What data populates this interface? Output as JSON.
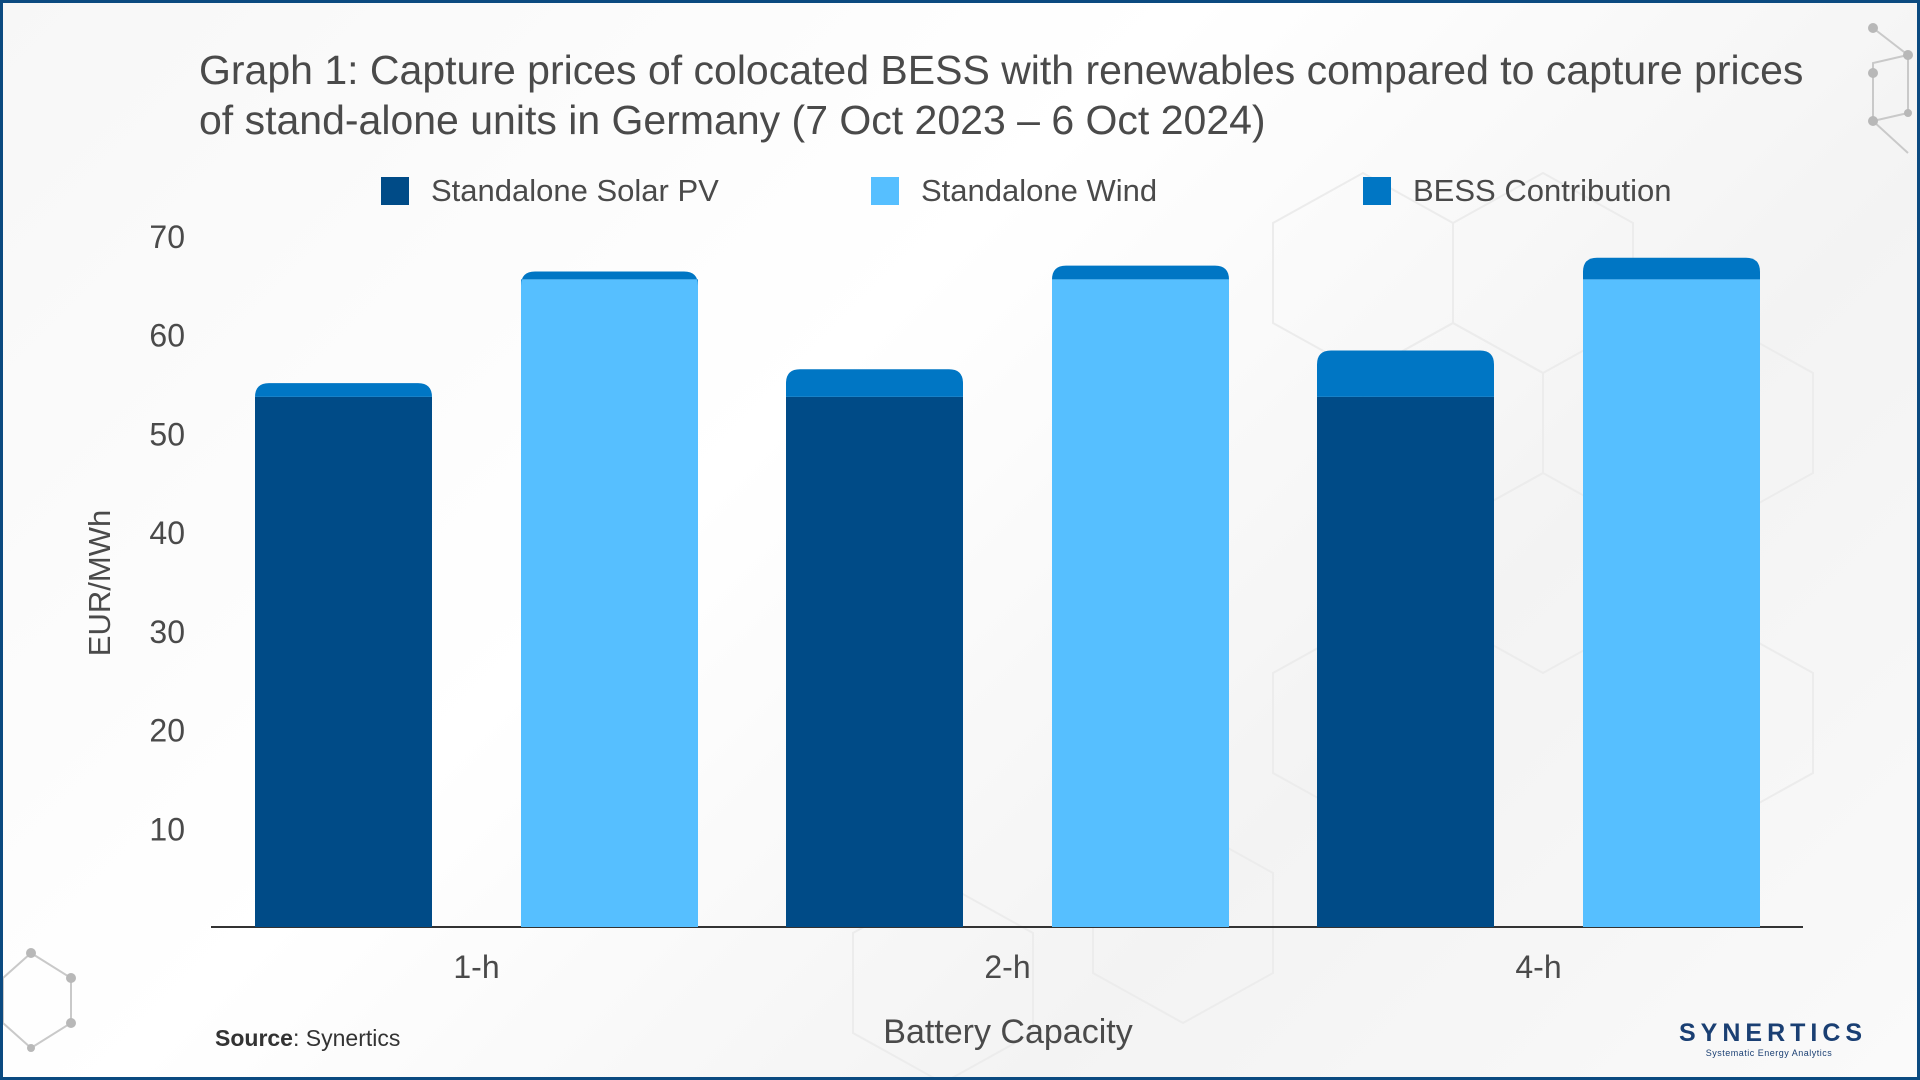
{
  "title": "Graph 1: Capture prices of colocated BESS with renewables compared to capture prices of stand-alone units in Germany (7 Oct 2023 – 6 Oct 2024)",
  "source": {
    "label": "Source",
    "text": ": Synertics"
  },
  "logo": {
    "name": "SYNERTICS",
    "tagline": "Systematic Energy Analytics"
  },
  "colors": {
    "solar": "#004b87",
    "wind": "#56bfff",
    "bess": "#0076c4",
    "axis_text": "#4a4a4a"
  },
  "chart_data": {
    "type": "bar",
    "stacked": true,
    "title": "Graph 1: Capture prices of colocated BESS with renewables compared to capture prices of stand-alone units in Germany (7 Oct 2023 – 6 Oct 2024)",
    "xlabel": "Battery Capacity",
    "ylabel": "EUR/MWh",
    "categories": [
      "1-h",
      "2-h",
      "4-h"
    ],
    "yticks": [
      10,
      20,
      30,
      40,
      50,
      60,
      70
    ],
    "ylim": [
      0,
      70
    ],
    "grid": false,
    "legend_position": "top",
    "legend": [
      "Standalone Solar PV",
      "Standalone Wind",
      "BESS Contribution"
    ],
    "series": [
      {
        "name": "Standalone Solar PV",
        "values": [
          53.7,
          53.7,
          53.7
        ]
      },
      {
        "name": "Standalone Wind",
        "values": [
          65.6,
          65.6,
          65.6
        ]
      },
      {
        "name": "BESS Contribution",
        "solar": [
          1.4,
          2.8,
          4.7
        ],
        "wind": [
          0.8,
          1.4,
          2.2
        ]
      }
    ]
  }
}
